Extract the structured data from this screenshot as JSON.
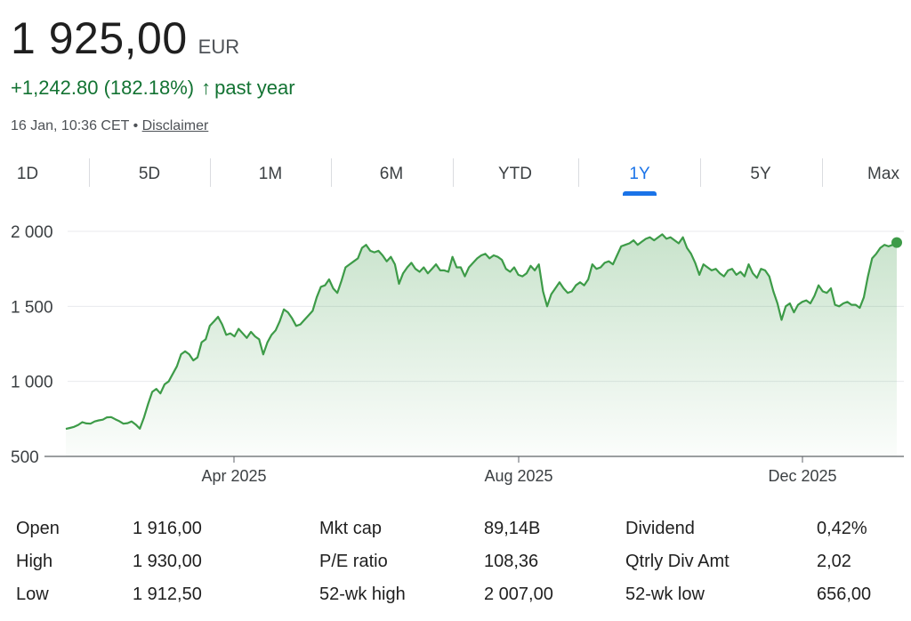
{
  "quote": {
    "price": "1 925,00",
    "currency": "EUR",
    "change": "+1,242.80 (182.18%)",
    "change_arrow": "↑",
    "change_period": "past year",
    "timestamp": "16 Jan, 10:36 CET •",
    "disclaimer": "Disclaimer"
  },
  "colors": {
    "positive": "#137333",
    "line": "#3d9b48",
    "active_tab": "#1a73e8"
  },
  "tabs": [
    {
      "label": "1D",
      "active": false
    },
    {
      "label": "5D",
      "active": false
    },
    {
      "label": "1M",
      "active": false
    },
    {
      "label": "6M",
      "active": false
    },
    {
      "label": "YTD",
      "active": false
    },
    {
      "label": "1Y",
      "active": true
    },
    {
      "label": "5Y",
      "active": false
    },
    {
      "label": "Max",
      "active": false
    }
  ],
  "chart_data": {
    "type": "area",
    "x_tick_labels": [
      "Apr 2025",
      "Aug 2025",
      "Dec 2025"
    ],
    "y_tick_labels": [
      "2 000",
      "1 500",
      "1 000",
      "500"
    ],
    "y_ticks": [
      2000,
      1500,
      1000,
      500
    ],
    "ylim": [
      500,
      2100
    ],
    "grid": true,
    "values": [
      683,
      690,
      697,
      710,
      728,
      720,
      718,
      733,
      740,
      745,
      760,
      762,
      748,
      735,
      718,
      722,
      733,
      712,
      685,
      760,
      850,
      930,
      950,
      920,
      980,
      1000,
      1050,
      1100,
      1180,
      1200,
      1180,
      1140,
      1160,
      1260,
      1280,
      1370,
      1400,
      1430,
      1380,
      1310,
      1320,
      1300,
      1350,
      1320,
      1290,
      1330,
      1300,
      1280,
      1180,
      1260,
      1310,
      1340,
      1400,
      1480,
      1460,
      1420,
      1370,
      1380,
      1410,
      1440,
      1470,
      1560,
      1630,
      1640,
      1680,
      1620,
      1590,
      1670,
      1760,
      1780,
      1800,
      1820,
      1890,
      1910,
      1870,
      1860,
      1870,
      1840,
      1800,
      1830,
      1780,
      1650,
      1720,
      1760,
      1790,
      1750,
      1730,
      1760,
      1720,
      1750,
      1780,
      1740,
      1740,
      1730,
      1830,
      1760,
      1760,
      1700,
      1760,
      1790,
      1820,
      1840,
      1850,
      1820,
      1840,
      1830,
      1810,
      1750,
      1730,
      1760,
      1710,
      1700,
      1720,
      1770,
      1740,
      1780,
      1600,
      1500,
      1580,
      1620,
      1660,
      1620,
      1590,
      1600,
      1640,
      1660,
      1640,
      1680,
      1780,
      1750,
      1760,
      1790,
      1800,
      1780,
      1840,
      1900,
      1910,
      1920,
      1940,
      1910,
      1930,
      1950,
      1960,
      1940,
      1960,
      1980,
      1950,
      1960,
      1940,
      1920,
      1960,
      1890,
      1850,
      1790,
      1710,
      1780,
      1760,
      1740,
      1750,
      1720,
      1700,
      1740,
      1750,
      1710,
      1730,
      1700,
      1780,
      1720,
      1690,
      1750,
      1740,
      1700,
      1600,
      1520,
      1410,
      1500,
      1520,
      1460,
      1510,
      1530,
      1540,
      1520,
      1570,
      1640,
      1600,
      1590,
      1620,
      1510,
      1500,
      1520,
      1530,
      1510,
      1510,
      1490,
      1560,
      1700,
      1820,
      1850,
      1890,
      1910,
      1900,
      1910,
      1925
    ],
    "last_point": 1925
  },
  "stats": {
    "left": [
      {
        "label": "Open",
        "value": "1 916,00"
      },
      {
        "label": "High",
        "value": "1 930,00"
      },
      {
        "label": "Low",
        "value": "1 912,50"
      }
    ],
    "middle": [
      {
        "label": "Mkt cap",
        "value": "89,14B"
      },
      {
        "label": "P/E ratio",
        "value": "108,36"
      },
      {
        "label": "52-wk high",
        "value": "2 007,00"
      }
    ],
    "right": [
      {
        "label": "Dividend",
        "value": "0,42%"
      },
      {
        "label": "Qtrly Div Amt",
        "value": "2,02"
      },
      {
        "label": "52-wk low",
        "value": "656,00"
      }
    ]
  }
}
